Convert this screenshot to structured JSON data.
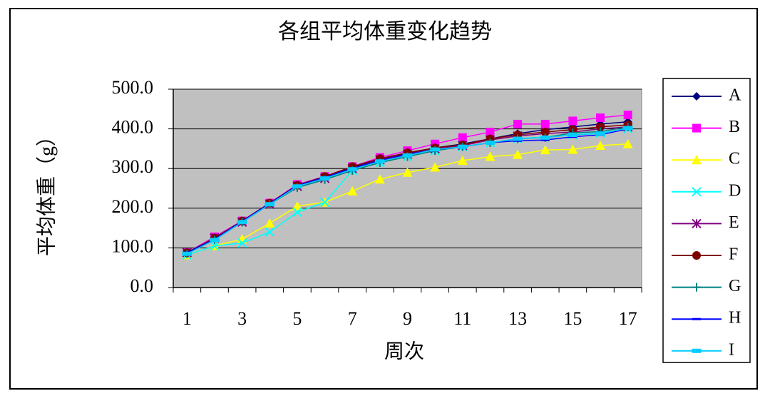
{
  "chart_data": {
    "type": "line",
    "title": "各组平均体重变化趋势",
    "x_label": "周次",
    "y_label": "平均体重（g）",
    "categories": [
      "1",
      null,
      "3",
      null,
      "5",
      null,
      "7",
      null,
      "9",
      null,
      "11",
      null,
      "13",
      null,
      "15",
      null,
      "17"
    ],
    "ylim": [
      0,
      500
    ],
    "yticks": [
      {
        "value": 0,
        "label": "0.0"
      },
      {
        "value": 100,
        "label": "100.0"
      },
      {
        "value": 200,
        "label": "200.0"
      },
      {
        "value": 300,
        "label": "300.0"
      },
      {
        "value": 400,
        "label": "400.0"
      },
      {
        "value": 500,
        "label": "500.0"
      }
    ],
    "grid": true,
    "plot_background": "#c0c0c0",
    "legend": "right",
    "series": [
      {
        "name": "A",
        "color": "#000080",
        "marker": "diamond",
        "values": [
          88,
          125,
          168,
          213,
          258,
          280,
          302,
          323,
          338,
          352,
          362,
          375,
          388,
          398,
          405,
          412,
          418
        ]
      },
      {
        "name": "B",
        "color": "#ff00ff",
        "marker": "square",
        "values": [
          88,
          128,
          168,
          213,
          260,
          280,
          305,
          328,
          345,
          362,
          378,
          392,
          412,
          412,
          420,
          428,
          435
        ]
      },
      {
        "name": "C",
        "color": "#ffff00",
        "marker": "triangle",
        "values": [
          82,
          105,
          122,
          162,
          205,
          215,
          243,
          273,
          290,
          303,
          320,
          330,
          335,
          347,
          348,
          358,
          362
        ]
      },
      {
        "name": "D",
        "color": "#00ffff",
        "marker": "x",
        "values": [
          82,
          105,
          112,
          140,
          190,
          215,
          295,
          315,
          330,
          345,
          355,
          365,
          375,
          380,
          385,
          390,
          400
        ]
      },
      {
        "name": "E",
        "color": "#800080",
        "marker": "star",
        "values": [
          88,
          125,
          165,
          210,
          255,
          275,
          300,
          322,
          336,
          350,
          358,
          372,
          382,
          388,
          392,
          400,
          405
        ]
      },
      {
        "name": "F",
        "color": "#800000",
        "marker": "circle",
        "values": [
          88,
          125,
          168,
          213,
          258,
          280,
          305,
          325,
          340,
          352,
          360,
          375,
          385,
          392,
          398,
          405,
          410
        ]
      },
      {
        "name": "G",
        "color": "#008080",
        "marker": "plus",
        "values": [
          85,
          120,
          165,
          210,
          252,
          272,
          295,
          315,
          330,
          345,
          355,
          365,
          375,
          378,
          390,
          393,
          405
        ]
      },
      {
        "name": "H",
        "color": "#0000ff",
        "marker": "dash",
        "values": [
          88,
          122,
          167,
          212,
          257,
          278,
          300,
          320,
          335,
          348,
          355,
          365,
          370,
          372,
          380,
          385,
          400
        ]
      },
      {
        "name": "I",
        "color": "#00ccff",
        "marker": "bar",
        "values": [
          85,
          120,
          165,
          210,
          255,
          275,
          298,
          318,
          333,
          348,
          355,
          365,
          375,
          378,
          385,
          388,
          402
        ]
      }
    ]
  }
}
